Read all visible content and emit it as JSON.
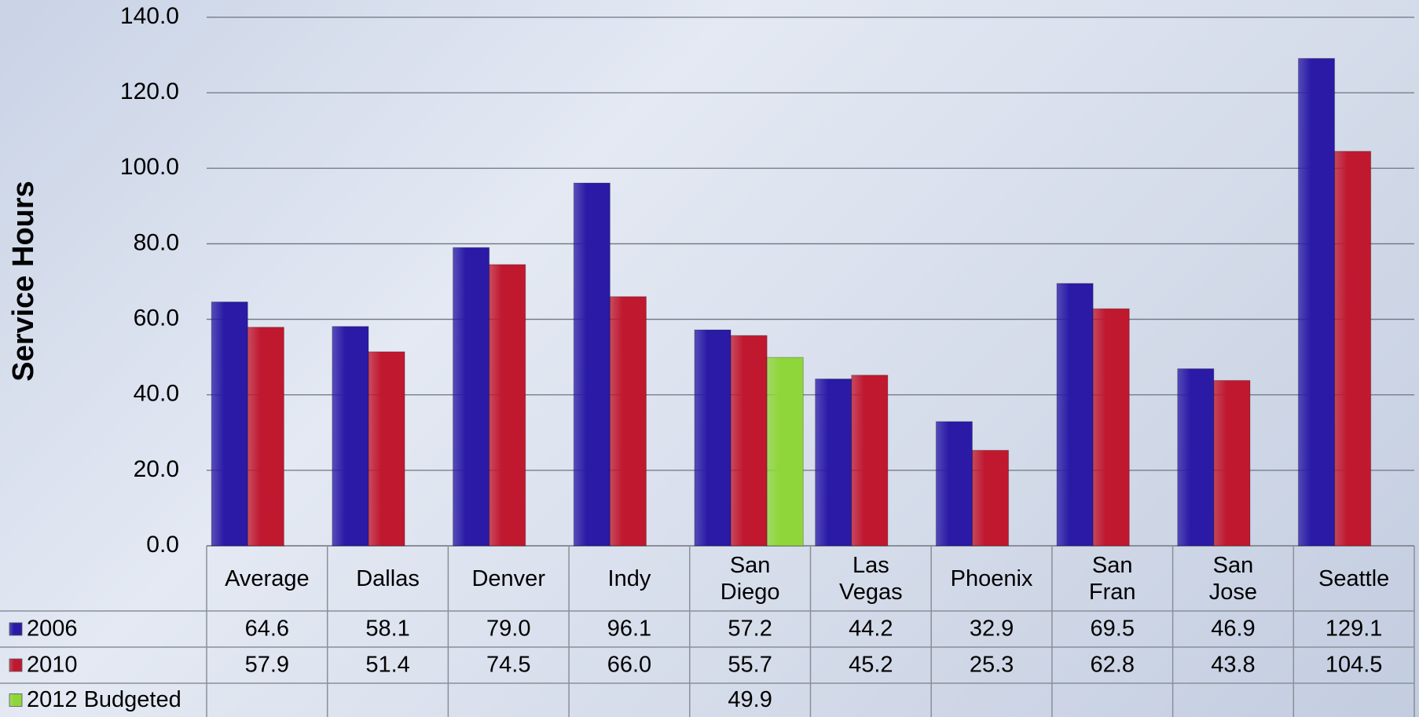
{
  "chart_data": {
    "type": "bar",
    "y_axis_label": "Service Hours",
    "categories": [
      "Average",
      "Dallas",
      "Denver",
      "Indy",
      "San\nDiego",
      "Las\nVegas",
      "Phoenix",
      "San\nFran",
      "San\nJose",
      "Seattle"
    ],
    "series": [
      {
        "name": "2006",
        "color": "#2a1aa6",
        "values": [
          64.6,
          58.1,
          79.0,
          96.1,
          57.2,
          44.2,
          32.9,
          69.5,
          46.9,
          129.1
        ],
        "value_labels": [
          "64.6",
          "58.1",
          "79.0",
          "96.1",
          "57.2",
          "44.2",
          "32.9",
          "69.5",
          "46.9",
          "129.1"
        ]
      },
      {
        "name": "2010",
        "color": "#c0182f",
        "values": [
          57.9,
          51.4,
          74.5,
          66.0,
          55.7,
          45.2,
          25.3,
          62.8,
          43.8,
          104.5
        ],
        "value_labels": [
          "57.9",
          "51.4",
          "74.5",
          "66.0",
          "55.7",
          "45.2",
          "25.3",
          "62.8",
          "43.8",
          "104.5"
        ]
      },
      {
        "name": "2012 Budgeted",
        "color": "#8fd63a",
        "values": [
          null,
          null,
          null,
          null,
          49.9,
          null,
          null,
          null,
          null,
          null
        ],
        "value_labels": [
          null,
          null,
          null,
          null,
          "49.9",
          null,
          null,
          null,
          null,
          null
        ]
      }
    ],
    "ylim": [
      0,
      140
    ],
    "yticks": [
      {
        "value": 0,
        "label": "0.0"
      },
      {
        "value": 20,
        "label": "20.0"
      },
      {
        "value": 40,
        "label": "40.0"
      },
      {
        "value": 60,
        "label": "60.0"
      },
      {
        "value": 80,
        "label": "80.0"
      },
      {
        "value": 100,
        "label": "100.0"
      },
      {
        "value": 120,
        "label": "120.0"
      },
      {
        "value": 140,
        "label": "140.0"
      }
    ],
    "grid": true
  }
}
